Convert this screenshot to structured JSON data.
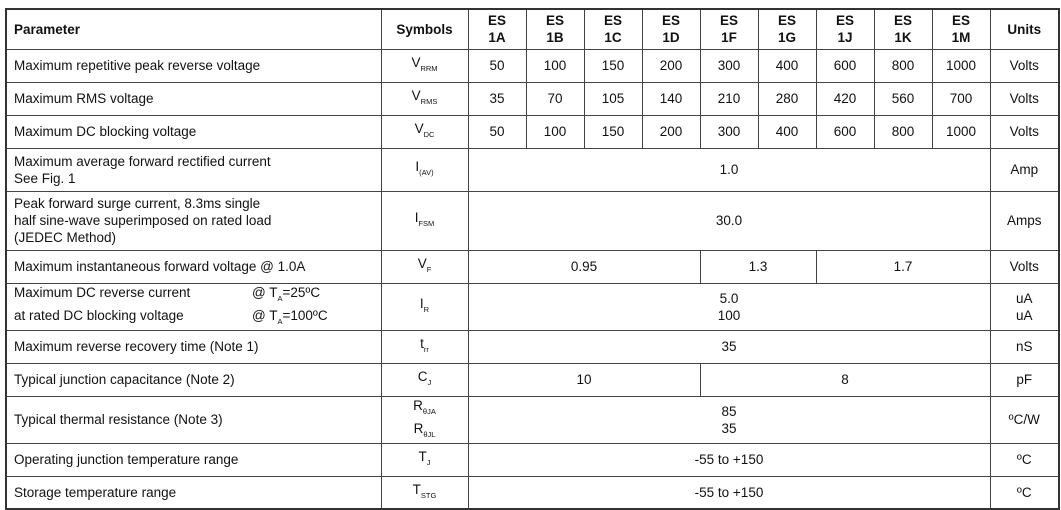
{
  "header": {
    "parameter": "Parameter",
    "symbols": "Symbols",
    "parts": [
      "ES 1A",
      "ES 1B",
      "ES 1C",
      "ES 1D",
      "ES 1F",
      "ES 1G",
      "ES 1J",
      "ES 1K",
      "ES 1M"
    ],
    "units": "Units"
  },
  "rows": {
    "vrrm": {
      "param": "Maximum repetitive peak reverse voltage",
      "sym": "V",
      "sub": "RRM",
      "values": [
        "50",
        "100",
        "150",
        "200",
        "300",
        "400",
        "600",
        "800",
        "1000"
      ],
      "unit": "Volts"
    },
    "vrms": {
      "param": "Maximum RMS voltage",
      "sym": "V",
      "sub": "RMS",
      "values": [
        "35",
        "70",
        "105",
        "140",
        "210",
        "280",
        "420",
        "560",
        "700"
      ],
      "unit": "Volts"
    },
    "vdc": {
      "param": "Maximum DC blocking voltage",
      "sym": "V",
      "sub": "DC",
      "values": [
        "50",
        "100",
        "150",
        "200",
        "300",
        "400",
        "600",
        "800",
        "1000"
      ],
      "unit": "Volts"
    },
    "iav": {
      "param1": "Maximum average forward rectified current",
      "param2": "See Fig. 1",
      "sym": "I",
      "sub": "(AV)",
      "value": "1.0",
      "unit": "Amp"
    },
    "ifsm": {
      "param1": "Peak forward surge current, 8.3ms single",
      "param2": "half sine-wave superimposed on rated load",
      "param3": "(JEDEC Method)",
      "sym": "I",
      "sub": "FSM",
      "value": "30.0",
      "unit": "Amps"
    },
    "vf": {
      "param": "Maximum instantaneous forward voltage @ 1.0A",
      "sym": "V",
      "sub": "F",
      "values": [
        "0.95",
        "1.3",
        "1.7"
      ],
      "unit": "Volts"
    },
    "ir": {
      "param1": "Maximum DC reverse current",
      "cond1": "@ T",
      "cond1sub": "A",
      "cond1rest": "=25ºC",
      "param2": "at rated DC blocking voltage",
      "cond2": "@ T",
      "cond2sub": "A",
      "cond2rest": "=100ºC",
      "sym": "I",
      "sub": "R",
      "value1": "5.0",
      "value2": "100",
      "unit1": "uA",
      "unit2": "uA"
    },
    "trr": {
      "param": "Maximum reverse recovery time (Note 1)",
      "sym": "t",
      "sub": "rr",
      "value": "35",
      "unit": "nS"
    },
    "cj": {
      "param": "Typical junction capacitance (Note 2)",
      "sym": "C",
      "sub": "J",
      "values": [
        "10",
        "8"
      ],
      "unit": "pF"
    },
    "rth": {
      "param": "Typical thermal resistance (Note 3)",
      "sym1": "R",
      "sub1": "θJA",
      "sym2": "R",
      "sub2": "θJL",
      "value1": "85",
      "value2": "35",
      "unit": "ºC/W"
    },
    "tj": {
      "param": "Operating junction temperature range",
      "sym": "T",
      "sub": "J",
      "value": "-55 to +150",
      "unit": "ºC"
    },
    "tstg": {
      "param": "Storage temperature range",
      "sym": "T",
      "sub": "STG",
      "value": "-55 to +150",
      "unit": "ºC"
    }
  }
}
